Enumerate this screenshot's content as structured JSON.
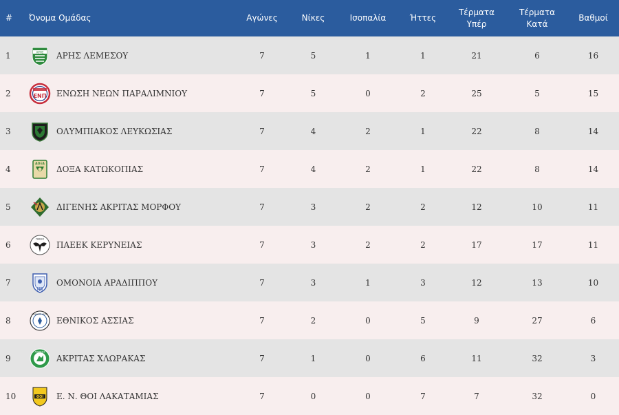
{
  "headers": {
    "pos": "#",
    "team": "Όνομα Ομάδας",
    "played": "Αγώνες",
    "wins": "Νίκες",
    "draws": "Ισοπαλία",
    "losses": "Ήττες",
    "goals_for_1": "Τέρματα",
    "goals_for_2": "Υπέρ",
    "goals_against_1": "Τέρματα",
    "goals_against_2": "Κατά",
    "points": "Βαθμοί"
  },
  "rows": [
    {
      "pos": "1",
      "team": "ΑΡΗΣ ΛΕΜΕΣΟΥ",
      "crest": "aris-limassol-crest-icon",
      "played": "7",
      "wins": "5",
      "draws": "1",
      "losses": "1",
      "gf": "21",
      "ga": "6",
      "pts": "16"
    },
    {
      "pos": "2",
      "team": "ΕΝΩΣΗ ΝΕΩΝ ΠΑΡΑΛΙΜΝΙΟΥ",
      "crest": "enosis-paralimni-crest-icon",
      "played": "7",
      "wins": "5",
      "draws": "0",
      "losses": "2",
      "gf": "25",
      "ga": "5",
      "pts": "15"
    },
    {
      "pos": "3",
      "team": "ΟΛΥΜΠΙΑΚΟΣ ΛΕΥΚΩΣΙΑΣ",
      "crest": "olympiakos-nicosia-crest-icon",
      "played": "7",
      "wins": "4",
      "draws": "2",
      "losses": "1",
      "gf": "22",
      "ga": "8",
      "pts": "14"
    },
    {
      "pos": "4",
      "team": "ΔΟΞΑ ΚΑΤΩΚΟΠΙΑΣ",
      "crest": "doxa-katokopias-crest-icon",
      "played": "7",
      "wins": "4",
      "draws": "2",
      "losses": "1",
      "gf": "22",
      "ga": "8",
      "pts": "14"
    },
    {
      "pos": "5",
      "team": "ΔΙΓΕΝΗΣ ΑΚΡΙΤΑΣ ΜΟΡΦΟΥ",
      "crest": "digenis-morfou-crest-icon",
      "played": "7",
      "wins": "3",
      "draws": "2",
      "losses": "2",
      "gf": "12",
      "ga": "10",
      "pts": "11"
    },
    {
      "pos": "6",
      "team": "ΠΑΕΕΚ ΚΕΡΥΝΕΙΑΣ",
      "crest": "paeek-crest-icon",
      "played": "7",
      "wins": "3",
      "draws": "2",
      "losses": "2",
      "gf": "17",
      "ga": "17",
      "pts": "11"
    },
    {
      "pos": "7",
      "team": "ΟΜΟΝΟΙΑ ΑΡΑΔΙΠΠΟΥ",
      "crest": "omonia-aradippou-crest-icon",
      "played": "7",
      "wins": "3",
      "draws": "1",
      "losses": "3",
      "gf": "12",
      "ga": "13",
      "pts": "10"
    },
    {
      "pos": "8",
      "team": "ΕΘΝΙΚΟΣ ΑΣΣΙΑΣ",
      "crest": "ethnikos-assias-crest-icon",
      "played": "7",
      "wins": "2",
      "draws": "0",
      "losses": "5",
      "gf": "9",
      "ga": "27",
      "pts": "6"
    },
    {
      "pos": "9",
      "team": "ΑΚΡΙΤΑΣ ΧΛΩΡΑΚΑΣ",
      "crest": "akritas-chlorakas-crest-icon",
      "played": "7",
      "wins": "1",
      "draws": "0",
      "losses": "6",
      "gf": "11",
      "ga": "32",
      "pts": "3"
    },
    {
      "pos": "10",
      "team": "Ε. Ν. ΘΟΙ ΛΑΚΑΤΑΜΙΑΣ",
      "crest": "thoi-lakatamias-crest-icon",
      "played": "7",
      "wins": "0",
      "draws": "0",
      "losses": "7",
      "gf": "7",
      "ga": "32",
      "pts": "0"
    }
  ],
  "crest_text": {
    "aris": "ΑΡΗΣ",
    "enp": "ΕΝΠ",
    "doxa": "ΔΟΞΑ",
    "paeek": "ΠΑΕΕΚ",
    "ethnikos": "ΕΘΝΙΚΟΣ ΑΣΣΙΑ",
    "akritas": "ΑΚΡΙΤΑΣ",
    "thoi": "ΘΟΙ"
  },
  "colors": {
    "header_bg": "#2b5c9e",
    "row_odd_bg": "#e4e4e4",
    "row_even_bg": "#f8eeee"
  }
}
